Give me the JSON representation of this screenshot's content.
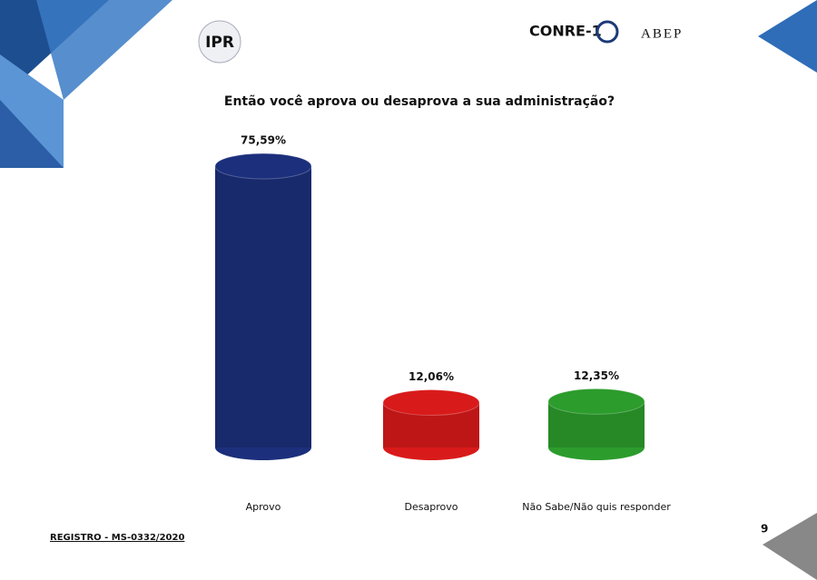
{
  "chart_data": {
    "type": "bar",
    "title": "Então você aprova ou desaprova a sua administração?",
    "categories": [
      "Aprovo",
      "Desaprovo",
      "Não Sabe/Não quis responder"
    ],
    "values": [
      75.59,
      12.06,
      12.35
    ],
    "value_labels": [
      "75,59%",
      "12,06%",
      "12,35%"
    ],
    "colors": [
      "#1c2f7c",
      "#d91a1a",
      "#2c9c2c"
    ]
  },
  "page": {
    "logos": [
      "IPR",
      "CONRE-1",
      "ABEP"
    ],
    "registration": "REGISTRO - MS-0332/2020",
    "page_number": "9"
  }
}
